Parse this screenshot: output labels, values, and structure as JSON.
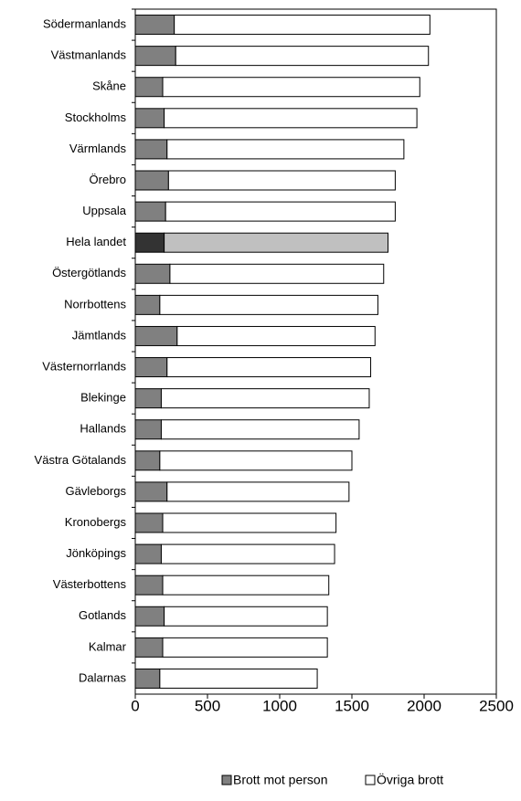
{
  "chart_data": {
    "type": "stacked-barh",
    "categories": [
      "Södermanlands",
      "Västmanlands",
      "Skåne",
      "Stockholms",
      "Värmlands",
      "Örebro",
      "Uppsala",
      "Hela landet",
      "Östergötlands",
      "Norrbottens",
      "Jämtlands",
      "Västernorrlands",
      "Blekinge",
      "Hallands",
      "Västra Götalands",
      "Gävleborgs",
      "Kronobergs",
      "Jönköpings",
      "Västerbottens",
      "Gotlands",
      "Kalmar",
      "Dalarnas"
    ],
    "series": [
      {
        "name": "Brott mot person",
        "color": "#808080",
        "colors": [
          "#808080",
          "#808080",
          "#808080",
          "#808080",
          "#808080",
          "#808080",
          "#808080",
          "#333333",
          "#808080",
          "#808080",
          "#808080",
          "#808080",
          "#808080",
          "#808080",
          "#808080",
          "#808080",
          "#808080",
          "#808080",
          "#808080",
          "#808080",
          "#808080",
          "#808080"
        ],
        "values": [
          270,
          280,
          190,
          200,
          220,
          230,
          210,
          200,
          240,
          170,
          290,
          220,
          180,
          180,
          170,
          220,
          190,
          180,
          190,
          200,
          190,
          170
        ]
      },
      {
        "name": "Övriga brott",
        "color": "#ffffff",
        "colors": [
          "#ffffff",
          "#ffffff",
          "#ffffff",
          "#ffffff",
          "#ffffff",
          "#ffffff",
          "#ffffff",
          "#c0c0c0",
          "#ffffff",
          "#ffffff",
          "#ffffff",
          "#ffffff",
          "#ffffff",
          "#ffffff",
          "#ffffff",
          "#ffffff",
          "#ffffff",
          "#ffffff",
          "#ffffff",
          "#ffffff",
          "#ffffff",
          "#ffffff"
        ],
        "values": [
          1770,
          1750,
          1780,
          1750,
          1640,
          1570,
          1590,
          1550,
          1480,
          1510,
          1370,
          1410,
          1440,
          1370,
          1330,
          1260,
          1200,
          1200,
          1150,
          1130,
          1140,
          1090
        ]
      }
    ],
    "xlim": [
      0,
      2500
    ],
    "xticks": [
      0,
      500,
      1000,
      1500,
      2000,
      2500
    ],
    "legend": "bottom"
  }
}
